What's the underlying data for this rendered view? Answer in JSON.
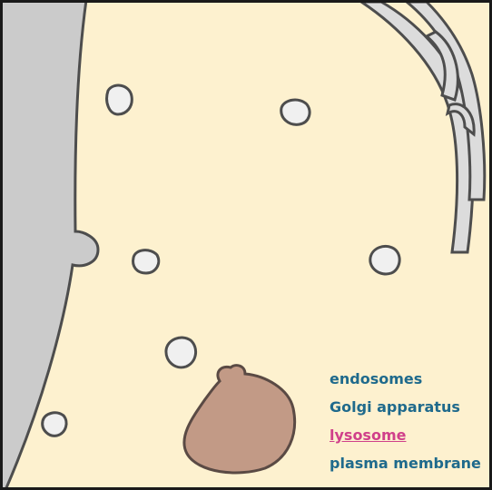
{
  "colors": {
    "cytoplasm": "#fdf1cf",
    "cell_exterior": "#cbcbcb",
    "outline": "#4d4d4d",
    "endosome_fill": "#f0f0f0",
    "golgi_fill": "#dcdcdc",
    "lysosome_fill": "#c29a86",
    "lysosome_outline": "#5a4a44",
    "label_default": "#1f6a8c",
    "label_selected": "#d0408a"
  },
  "legend": {
    "items": [
      {
        "id": "endosomes",
        "label": "endosomes",
        "selected": false
      },
      {
        "id": "golgi",
        "label": "Golgi apparatus",
        "selected": false
      },
      {
        "id": "lysosome",
        "label": "lysosome",
        "selected": true
      },
      {
        "id": "plasma-membrane",
        "label": "plasma membrane",
        "selected": false
      }
    ]
  },
  "icons": {
    "endosome": "endosome-icon",
    "golgi": "golgi-apparatus-icon",
    "lysosome": "lysosome-icon",
    "membrane": "plasma-membrane-icon"
  }
}
